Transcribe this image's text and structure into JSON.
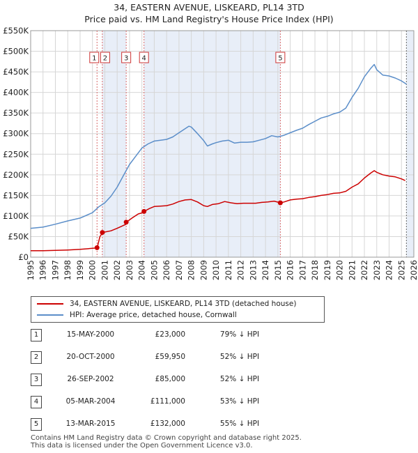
{
  "chart_data": {
    "type": "line",
    "title": "34, EASTERN AVENUE, LISKEARD, PL14 3TD",
    "subtitle": "Price paid vs. HM Land Registry's House Price Index (HPI)",
    "xlim": [
      1995,
      2026
    ],
    "ylim": [
      0,
      550000
    ],
    "y_ticks": [
      0,
      50000,
      100000,
      150000,
      200000,
      250000,
      300000,
      350000,
      400000,
      450000,
      500000,
      550000
    ],
    "y_tick_labels": [
      "£0",
      "£50K",
      "£100K",
      "£150K",
      "£200K",
      "£250K",
      "£300K",
      "£350K",
      "£400K",
      "£450K",
      "£500K",
      "£550K"
    ],
    "x_ticks": [
      1995,
      1996,
      1997,
      1998,
      1999,
      2000,
      2001,
      2002,
      2003,
      2004,
      2005,
      2006,
      2007,
      2008,
      2009,
      2010,
      2011,
      2012,
      2013,
      2014,
      2015,
      2016,
      2017,
      2018,
      2019,
      2020,
      2021,
      2022,
      2023,
      2024,
      2025,
      2026
    ],
    "x_tick_labels": [
      "1995",
      "1996",
      "1997",
      "1998",
      "1999",
      "2000",
      "2001",
      "2002",
      "2003",
      "2004",
      "2005",
      "2006",
      "2007",
      "2008",
      "2009",
      "2010",
      "2011",
      "2012",
      "2013",
      "2014",
      "2015",
      "2016",
      "2017",
      "2018",
      "2019",
      "2020",
      "2021",
      "2022",
      "2023",
      "2024",
      "2025",
      "2026"
    ],
    "grid": true,
    "shaded_periods": [
      [
        2000.8,
        2002.73
      ],
      [
        2004.17,
        2015.2
      ],
      [
        2025.4,
        2026
      ]
    ],
    "series": [
      {
        "name": "34, EASTERN AVENUE, LISKEARD, PL14 3TD (detached house)",
        "color": "#cc0000",
        "x": [
          1995.0,
          1996.0,
          1997.0,
          1998.0,
          1999.0,
          2000.0,
          2000.37,
          2000.38,
          2000.6,
          2000.79,
          2000.8,
          2001.5,
          2002.0,
          2002.73,
          2002.74,
          2003.2,
          2003.7,
          2004.17,
          2004.18,
          2004.6,
          2005.0,
          2005.5,
          2006.0,
          2006.5,
          2007.0,
          2007.5,
          2008.0,
          2008.5,
          2009.0,
          2009.3,
          2009.7,
          2010.2,
          2010.7,
          2011.2,
          2011.7,
          2012.2,
          2012.7,
          2013.2,
          2013.7,
          2014.2,
          2014.7,
          2015.2,
          2015.5,
          2016.0,
          2016.5,
          2017.0,
          2017.5,
          2018.0,
          2018.5,
          2019.0,
          2019.5,
          2020.0,
          2020.5,
          2021.0,
          2021.5,
          2022.0,
          2022.5,
          2022.8,
          2023.0,
          2023.5,
          2024.0,
          2024.5,
          2025.0,
          2025.3
        ],
        "values": [
          15500,
          15800,
          16500,
          17500,
          19000,
          21500,
          22500,
          23000,
          50000,
          58000,
          59950,
          64000,
          70000,
          80000,
          85000,
          95000,
          105000,
          109000,
          111000,
          118000,
          123000,
          124000,
          125000,
          129000,
          135000,
          139000,
          140000,
          134000,
          125000,
          123000,
          128000,
          130000,
          135000,
          132000,
          130000,
          131000,
          131000,
          131000,
          133000,
          134000,
          136000,
          132000,
          134000,
          139000,
          141000,
          142000,
          145000,
          147000,
          150000,
          152000,
          155000,
          156000,
          160000,
          170000,
          178000,
          192000,
          204000,
          210000,
          206000,
          200000,
          197000,
          195000,
          190000,
          186000
        ]
      },
      {
        "name": "HPI: Average price, detached house, Cornwall",
        "color": "#5b8ec9",
        "x": [
          1995.0,
          1996.0,
          1997.0,
          1998.0,
          1999.0,
          2000.0,
          2000.5,
          2001.0,
          2001.5,
          2002.0,
          2002.5,
          2003.0,
          2003.5,
          2004.0,
          2004.5,
          2005.0,
          2005.5,
          2006.0,
          2006.5,
          2007.0,
          2007.5,
          2007.8,
          2008.0,
          2008.5,
          2009.0,
          2009.3,
          2009.7,
          2010.0,
          2010.5,
          2011.0,
          2011.5,
          2012.0,
          2012.5,
          2013.0,
          2013.5,
          2014.0,
          2014.5,
          2015.0,
          2015.5,
          2016.0,
          2016.5,
          2017.0,
          2017.5,
          2018.0,
          2018.5,
          2019.0,
          2019.5,
          2020.0,
          2020.5,
          2021.0,
          2021.5,
          2022.0,
          2022.5,
          2022.8,
          2023.0,
          2023.5,
          2024.0,
          2024.5,
          2025.0,
          2025.4
        ],
        "values": [
          70000,
          73000,
          80000,
          88000,
          95000,
          108000,
          122000,
          132000,
          148000,
          170000,
          198000,
          225000,
          245000,
          265000,
          275000,
          282000,
          284000,
          286000,
          292000,
          302000,
          312000,
          318000,
          316000,
          300000,
          283000,
          270000,
          275000,
          278000,
          282000,
          284000,
          277000,
          279000,
          279000,
          280000,
          284000,
          288000,
          295000,
          292000,
          296000,
          302000,
          308000,
          313000,
          322000,
          330000,
          338000,
          342000,
          348000,
          352000,
          362000,
          388000,
          410000,
          438000,
          458000,
          468000,
          455000,
          442000,
          440000,
          435000,
          428000,
          420000
        ]
      }
    ],
    "sale_points": [
      {
        "id": "1",
        "x": 2000.37,
        "price": 23000
      },
      {
        "id": "2",
        "x": 2000.8,
        "price": 59950
      },
      {
        "id": "3",
        "x": 2002.73,
        "price": 85000
      },
      {
        "id": "4",
        "x": 2004.17,
        "price": 111000
      },
      {
        "id": "5",
        "x": 2015.2,
        "price": 132000
      }
    ]
  },
  "legend": {
    "property_label": "34, EASTERN AVENUE, LISKEARD, PL14 3TD (detached house)",
    "hpi_label": "HPI: Average price, detached house, Cornwall",
    "property_color": "#cc0000",
    "hpi_color": "#5b8ec9"
  },
  "transactions": [
    {
      "id": "1",
      "date": "15-MAY-2000",
      "price": "£23,000",
      "hpi": "79% ↓ HPI"
    },
    {
      "id": "2",
      "date": "20-OCT-2000",
      "price": "£59,950",
      "hpi": "52% ↓ HPI"
    },
    {
      "id": "3",
      "date": "26-SEP-2002",
      "price": "£85,000",
      "hpi": "52% ↓ HPI"
    },
    {
      "id": "4",
      "date": "05-MAR-2004",
      "price": "£111,000",
      "hpi": "53% ↓ HPI"
    },
    {
      "id": "5",
      "date": "13-MAR-2015",
      "price": "£132,000",
      "hpi": "55% ↓ HPI"
    }
  ],
  "footer": {
    "line1": "Contains HM Land Registry data © Crown copyright and database right 2025.",
    "line2": "This data is licensed under the Open Government Licence v3.0."
  }
}
